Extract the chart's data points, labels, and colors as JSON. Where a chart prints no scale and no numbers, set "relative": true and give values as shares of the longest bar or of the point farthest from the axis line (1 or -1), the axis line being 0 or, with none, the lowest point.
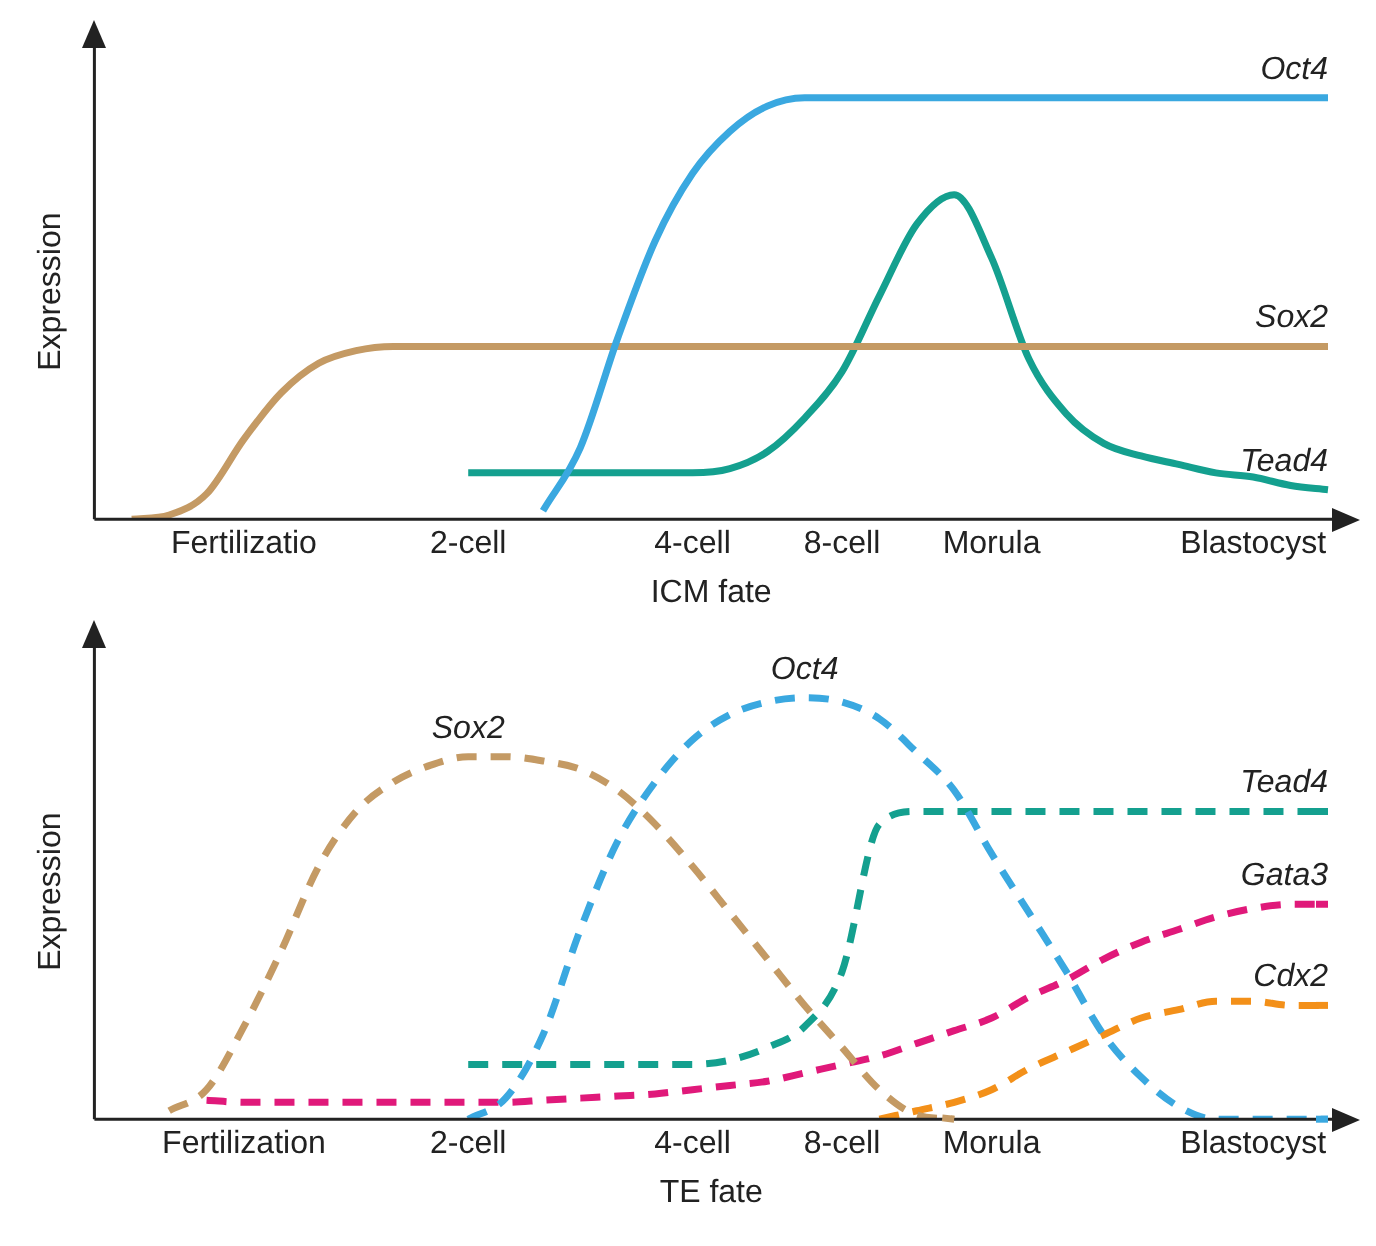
{
  "chart_data": [
    {
      "type": "line",
      "relative": true,
      "xlabel": "ICM fate",
      "ylabel": "Expression",
      "categories": [
        null,
        null,
        null,
        null,
        "Fertilizatio",
        null,
        null,
        null,
        null,
        null,
        "2-cell",
        null,
        null,
        null,
        null,
        null,
        "4-cell",
        null,
        null,
        null,
        "8-cell",
        null,
        null,
        null,
        "Morula",
        null,
        null,
        null,
        null,
        null,
        null,
        "Blastocyst",
        null,
        null
      ],
      "grid": false,
      "legend": false,
      "marker": "none",
      "line_style": "solid",
      "series": [
        {
          "name": "Oct4",
          "color": "#3aa8e0",
          "values": [
            null,
            null,
            null,
            null,
            null,
            null,
            null,
            null,
            null,
            null,
            null,
            null,
            0.02,
            0.17,
            0.43,
            0.66,
            0.82,
            0.92,
            0.98,
            1,
            1,
            1,
            1,
            1,
            1,
            1,
            1,
            1,
            1,
            1,
            1,
            1,
            1,
            1
          ]
        },
        {
          "name": "Sox2",
          "color": "#c49a64",
          "values": [
            null,
            0,
            0.01,
            0.06,
            0.19,
            0.3,
            0.37,
            0.4,
            0.41,
            0.41,
            0.41,
            0.41,
            0.41,
            0.41,
            0.41,
            0.41,
            0.41,
            0.41,
            0.41,
            0.41,
            0.41,
            0.41,
            0.41,
            0.41,
            0.41,
            0.41,
            0.41,
            0.41,
            0.41,
            0.41,
            0.41,
            0.41,
            0.41,
            0.41
          ]
        },
        {
          "name": "Tead4",
          "color": "#14a08f",
          "values": [
            null,
            null,
            null,
            null,
            null,
            null,
            null,
            null,
            null,
            null,
            0.11,
            0.11,
            0.11,
            0.11,
            0.11,
            0.11,
            0.11,
            0.12,
            0.16,
            0.24,
            0.35,
            0.53,
            0.7,
            0.77,
            0.62,
            0.38,
            0.25,
            0.18,
            0.15,
            0.13,
            0.11,
            0.1,
            0.08,
            0.07
          ]
        }
      ]
    },
    {
      "type": "line",
      "relative": true,
      "xlabel": "TE fate",
      "ylabel": "Expression",
      "categories": [
        null,
        null,
        null,
        null,
        "Fertilization",
        null,
        null,
        null,
        null,
        null,
        "2-cell",
        null,
        null,
        null,
        null,
        null,
        "4-cell",
        null,
        null,
        null,
        "8-cell",
        null,
        null,
        null,
        "Morula",
        null,
        null,
        null,
        null,
        null,
        null,
        "Blastocyst",
        null,
        null
      ],
      "grid": false,
      "legend": false,
      "marker": "none",
      "line_style": "dashed",
      "series": [
        {
          "name": "Sox2",
          "color": "#c49a64",
          "values": [
            null,
            null,
            0.02,
            0.07,
            0.22,
            0.4,
            0.6,
            0.73,
            0.8,
            0.84,
            0.86,
            0.86,
            0.85,
            0.83,
            0.78,
            0.7,
            0.6,
            0.49,
            0.38,
            0.27,
            0.17,
            0.07,
            0.01,
            0,
            null,
            null,
            null,
            null,
            null,
            null,
            null,
            null,
            null,
            null
          ]
        },
        {
          "name": "Oct4",
          "color": "#3aa8e0",
          "values": [
            null,
            null,
            null,
            null,
            null,
            null,
            null,
            null,
            null,
            null,
            0,
            0.05,
            0.2,
            0.45,
            0.66,
            0.8,
            0.9,
            0.96,
            0.99,
            1,
            0.99,
            0.95,
            0.87,
            0.78,
            0.63,
            0.49,
            0.35,
            0.2,
            0.1,
            0.03,
            0,
            0,
            0,
            0
          ]
        },
        {
          "name": "Tead4",
          "color": "#14a08f",
          "values": [
            null,
            null,
            null,
            null,
            null,
            null,
            null,
            null,
            null,
            null,
            0.13,
            0.13,
            0.13,
            0.13,
            0.13,
            0.13,
            0.13,
            0.14,
            0.17,
            0.22,
            0.35,
            0.7,
            0.73,
            0.73,
            0.73,
            0.73,
            0.73,
            0.73,
            0.73,
            0.73,
            0.73,
            0.73,
            0.73,
            0.73
          ]
        },
        {
          "name": "Gata3",
          "color": "#e0197a",
          "values": [
            null,
            null,
            null,
            0.045,
            0.04,
            0.04,
            0.04,
            0.04,
            0.04,
            0.04,
            0.04,
            0.04,
            0.045,
            0.05,
            0.055,
            0.06,
            0.07,
            0.08,
            0.09,
            0.11,
            0.13,
            0.15,
            0.18,
            0.21,
            0.24,
            0.29,
            0.33,
            0.38,
            0.42,
            0.45,
            0.48,
            0.5,
            0.51,
            0.51
          ]
        },
        {
          "name": "Cdx2",
          "color": "#f39019",
          "values": [
            null,
            null,
            null,
            null,
            null,
            null,
            null,
            null,
            null,
            null,
            null,
            null,
            null,
            null,
            null,
            null,
            null,
            null,
            null,
            null,
            null,
            0,
            0.02,
            0.04,
            0.07,
            0.12,
            0.16,
            0.2,
            0.24,
            0.26,
            0.28,
            0.28,
            0.27,
            0.27
          ]
        }
      ]
    }
  ]
}
